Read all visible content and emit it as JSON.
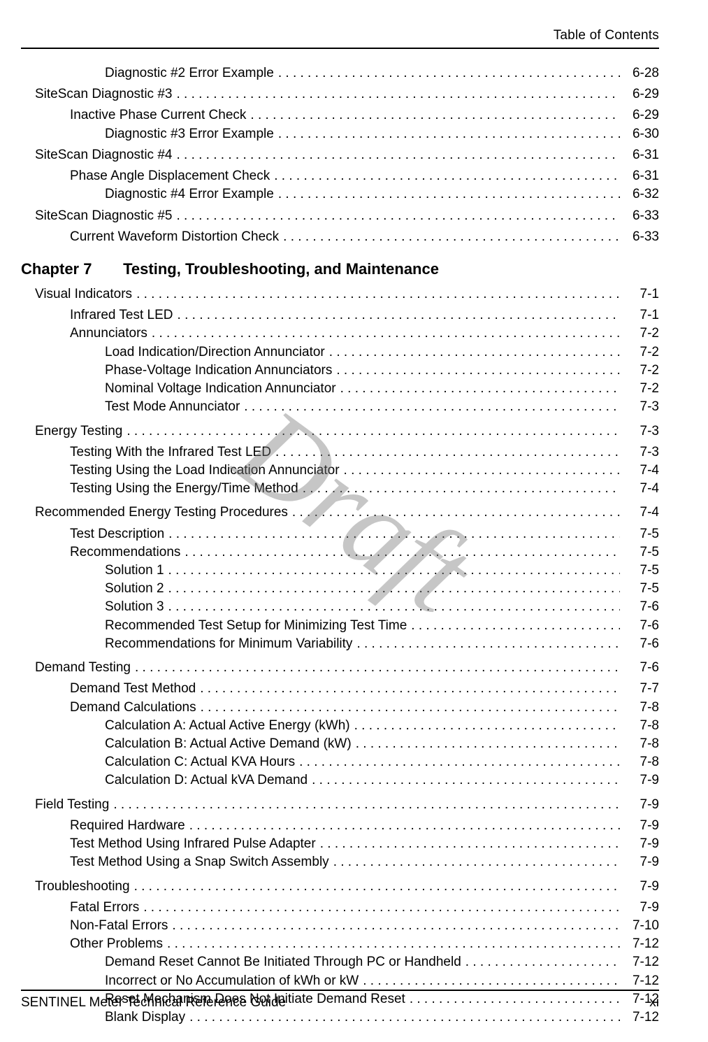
{
  "header": {
    "right": "Table of Contents"
  },
  "footer": {
    "left": "SENTINEL Meter Technical Reference Guide",
    "right": "xi"
  },
  "watermark": "Draft",
  "chapter": {
    "num": "Chapter 7",
    "title": "Testing, Troubleshooting, and Maintenance"
  },
  "toc_before": [
    {
      "indent": 2,
      "title": "Diagnostic #2 Error Example",
      "page": "6-28"
    },
    {
      "indent": 0,
      "title": "SiteScan Diagnostic #3",
      "page": "6-29",
      "gap_before": 4
    },
    {
      "indent": 1,
      "title": "Inactive Phase Current Check",
      "page": "6-29",
      "gap_before": 4
    },
    {
      "indent": 2,
      "title": "Diagnostic #3 Error Example",
      "page": "6-30"
    },
    {
      "indent": 0,
      "title": "SiteScan Diagnostic #4",
      "page": "6-31",
      "gap_before": 4
    },
    {
      "indent": 1,
      "title": "Phase Angle Displacement Check",
      "page": "6-31",
      "gap_before": 4
    },
    {
      "indent": 2,
      "title": "Diagnostic #4 Error Example",
      "page": "6-32"
    },
    {
      "indent": 0,
      "title": "SiteScan Diagnostic #5",
      "page": "6-33",
      "gap_before": 4
    },
    {
      "indent": 1,
      "title": "Current Waveform Distortion Check",
      "page": "6-33",
      "gap_before": 4
    }
  ],
  "toc_after": [
    {
      "indent": 0,
      "title": "Visual Indicators",
      "page": "7-1"
    },
    {
      "indent": 1,
      "title": "Infrared Test LED",
      "page": "7-1",
      "gap_before": 4
    },
    {
      "indent": 1,
      "title": "Annunciators",
      "page": "7-2"
    },
    {
      "indent": 2,
      "title": "Load Indication/Direction Annunciator",
      "page": "7-2"
    },
    {
      "indent": 2,
      "title": "Phase-Voltage Indication Annunciators",
      "page": "7-2"
    },
    {
      "indent": 2,
      "title": "Nominal Voltage Indication Annunciator",
      "page": "7-2"
    },
    {
      "indent": 2,
      "title": "Test Mode Annunciator",
      "page": "7-3"
    },
    {
      "indent": 0,
      "title": "Energy Testing",
      "page": "7-3",
      "gap_before": 8
    },
    {
      "indent": 1,
      "title": "Testing With the Infrared Test LED",
      "page": "7-3",
      "gap_before": 4
    },
    {
      "indent": 1,
      "title": "Testing Using the Load Indication Annunciator",
      "page": "7-4"
    },
    {
      "indent": 1,
      "title": "Testing Using the Energy/Time Method",
      "page": "7-4"
    },
    {
      "indent": 0,
      "title": "Recommended Energy Testing Procedures",
      "page": "7-4",
      "gap_before": 8
    },
    {
      "indent": 1,
      "title": "Test Description",
      "page": "7-5",
      "gap_before": 4
    },
    {
      "indent": 1,
      "title": "Recommendations",
      "page": "7-5"
    },
    {
      "indent": 2,
      "title": "Solution 1",
      "page": "7-5"
    },
    {
      "indent": 2,
      "title": "Solution 2",
      "page": "7-5"
    },
    {
      "indent": 2,
      "title": "Solution 3",
      "page": "7-6"
    },
    {
      "indent": 2,
      "title": "Recommended Test Setup for Minimizing Test Time",
      "page": "7-6"
    },
    {
      "indent": 2,
      "title": "Recommendations for Minimum Variability",
      "page": "7-6"
    },
    {
      "indent": 0,
      "title": "Demand Testing",
      "page": "7-6",
      "gap_before": 8
    },
    {
      "indent": 1,
      "title": "Demand Test Method",
      "page": "7-7",
      "gap_before": 4
    },
    {
      "indent": 1,
      "title": "Demand Calculations",
      "page": "7-8"
    },
    {
      "indent": 2,
      "title": "Calculation A: Actual Active Energy (kWh)",
      "page": "7-8"
    },
    {
      "indent": 2,
      "title": "Calculation B: Actual Active Demand (kW)",
      "page": "7-8"
    },
    {
      "indent": 2,
      "title": "Calculation C: Actual KVA Hours",
      "page": "7-8"
    },
    {
      "indent": 2,
      "title": "Calculation D: Actual kVA Demand",
      "page": "7-9"
    },
    {
      "indent": 0,
      "title": "Field Testing",
      "page": "7-9",
      "gap_before": 8
    },
    {
      "indent": 1,
      "title": "Required Hardware",
      "page": "7-9",
      "gap_before": 4
    },
    {
      "indent": 1,
      "title": "Test Method Using Infrared Pulse Adapter",
      "page": "7-9"
    },
    {
      "indent": 1,
      "title": "Test Method Using a Snap Switch Assembly",
      "page": "7-9"
    },
    {
      "indent": 0,
      "title": "Troubleshooting",
      "page": "7-9",
      "gap_before": 8
    },
    {
      "indent": 1,
      "title": "Fatal Errors",
      "page": "7-9",
      "gap_before": 4
    },
    {
      "indent": 1,
      "title": "Non-Fatal Errors",
      "page": "7-10"
    },
    {
      "indent": 1,
      "title": "Other Problems",
      "page": "7-12"
    },
    {
      "indent": 2,
      "title": "Demand Reset Cannot Be Initiated Through PC or Handheld",
      "page": "7-12"
    },
    {
      "indent": 2,
      "title": "Incorrect or No Accumulation of kWh or kW",
      "page": "7-12"
    },
    {
      "indent": 2,
      "title": "Reset Mechanism Does Not Initiate Demand Reset",
      "page": "7-12"
    },
    {
      "indent": 2,
      "title": "Blank Display",
      "page": "7-12"
    }
  ]
}
